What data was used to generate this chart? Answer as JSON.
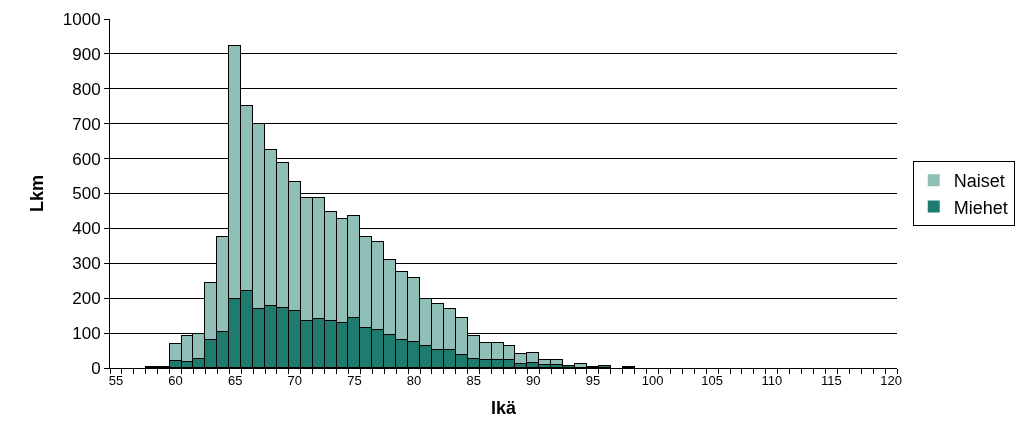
{
  "chart_data": {
    "type": "bar",
    "stacked": true,
    "xlabel": "Ikä",
    "ylabel": "Lkm",
    "categories": [
      "55",
      null,
      null,
      null,
      null,
      "60",
      null,
      null,
      null,
      null,
      "65",
      null,
      null,
      null,
      null,
      "70",
      null,
      null,
      null,
      null,
      "75",
      null,
      null,
      null,
      null,
      "80",
      null,
      null,
      null,
      null,
      "85",
      null,
      null,
      null,
      null,
      "90",
      null,
      null,
      null,
      null,
      "95",
      null,
      null,
      null,
      null,
      "100",
      null,
      null,
      null,
      null,
      "105",
      null,
      null,
      null,
      null,
      "110",
      null,
      null,
      null,
      null,
      "115",
      null,
      null,
      null,
      null,
      "120"
    ],
    "series": [
      {
        "name": "Miehet",
        "color": "#1e7b6e",
        "values": [
          0,
          0,
          0,
          3,
          3,
          19,
          17,
          26,
          79,
          103,
          199,
          220,
          170,
          177,
          173,
          163,
          135,
          140,
          134,
          130,
          143,
          116,
          110,
          95,
          79,
          74,
          62,
          52,
          52,
          38,
          25,
          22,
          22,
          22,
          11,
          14,
          9,
          9,
          7,
          null,
          3,
          5,
          0,
          3,
          0,
          0,
          0,
          0,
          0,
          0,
          0,
          0,
          0,
          0,
          0,
          0,
          0,
          0,
          0,
          0,
          0,
          0,
          0,
          0,
          0,
          0
        ]
      },
      {
        "name": "Naiset",
        "color": "#8fbfb7",
        "values": [
          0,
          0,
          0,
          0,
          0,
          51,
          76,
          71,
          164,
          272,
          724,
          531,
          530,
          449,
          414,
          369,
          351,
          346,
          313,
          298,
          292,
          259,
          252,
          214,
          195,
          184,
          137,
          131,
          118,
          104,
          68,
          51,
          51,
          40,
          28,
          29,
          13,
          13,
          null,
          11,
          0,
          0,
          0,
          0,
          0,
          0,
          0,
          0,
          0,
          0,
          0,
          0,
          0,
          0,
          0,
          0,
          0,
          0,
          0,
          0,
          0,
          0,
          0,
          0,
          0,
          0
        ]
      }
    ],
    "ylim": [
      0,
      1000
    ],
    "yticks": [
      0,
      100,
      200,
      300,
      400,
      500,
      600,
      700,
      800,
      900,
      1000
    ],
    "grid": "y",
    "legend": "right"
  }
}
